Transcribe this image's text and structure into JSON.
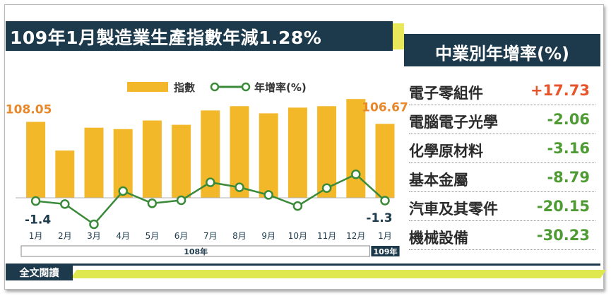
{
  "title": "109年1月製造業生產指數年減1.28%",
  "legend": {
    "index": "指數",
    "growth": "年增率(%)"
  },
  "colors": {
    "bar": "#f2b82a",
    "line": "#3a8a3a",
    "navy": "#1d3a4c",
    "positive": "#e8542a",
    "negative": "#4e9a33",
    "accent": "#e8e85a"
  },
  "chart_data": {
    "type": "bar",
    "categories": [
      "1月",
      "2月",
      "3月",
      "4月",
      "5月",
      "6月",
      "7月",
      "8月",
      "9月",
      "10月",
      "11月",
      "12月",
      "1月"
    ],
    "series": [
      {
        "name": "指數",
        "type": "bar",
        "values": [
          108.05,
          88,
          104,
          103,
          109,
          106,
          116,
          119,
          114,
          118,
          119,
          124,
          106.67
        ]
      },
      {
        "name": "年增率(%)",
        "type": "line",
        "values": [
          -1.4,
          -2.2,
          -7.5,
          1.2,
          -2.0,
          -1.2,
          3.5,
          2.2,
          0.2,
          -2.7,
          2.0,
          5.6,
          -1.3
        ]
      }
    ],
    "data_labels": {
      "first_index": "108.05",
      "last_index": "106.67",
      "first_growth": "-1.4",
      "last_growth": "-1.3"
    },
    "year_groups": [
      {
        "label": "108年",
        "count": 12
      },
      {
        "label": "109年",
        "count": 1
      }
    ]
  },
  "industry_panel": {
    "title": "中業別年增率(%)",
    "rows": [
      {
        "name": "電子零組件",
        "value": "+17.73",
        "sign": "positive"
      },
      {
        "name": "電腦電子光學",
        "value": "-2.06",
        "sign": "negative"
      },
      {
        "name": "化學原材料",
        "value": "-3.16",
        "sign": "negative"
      },
      {
        "name": "基本金屬",
        "value": "-8.79",
        "sign": "negative"
      },
      {
        "name": "汽車及其零件",
        "value": "-20.15",
        "sign": "negative"
      },
      {
        "name": "機械設備",
        "value": "-30.23",
        "sign": "negative"
      }
    ]
  },
  "footer": {
    "link": "全文閱讀"
  }
}
